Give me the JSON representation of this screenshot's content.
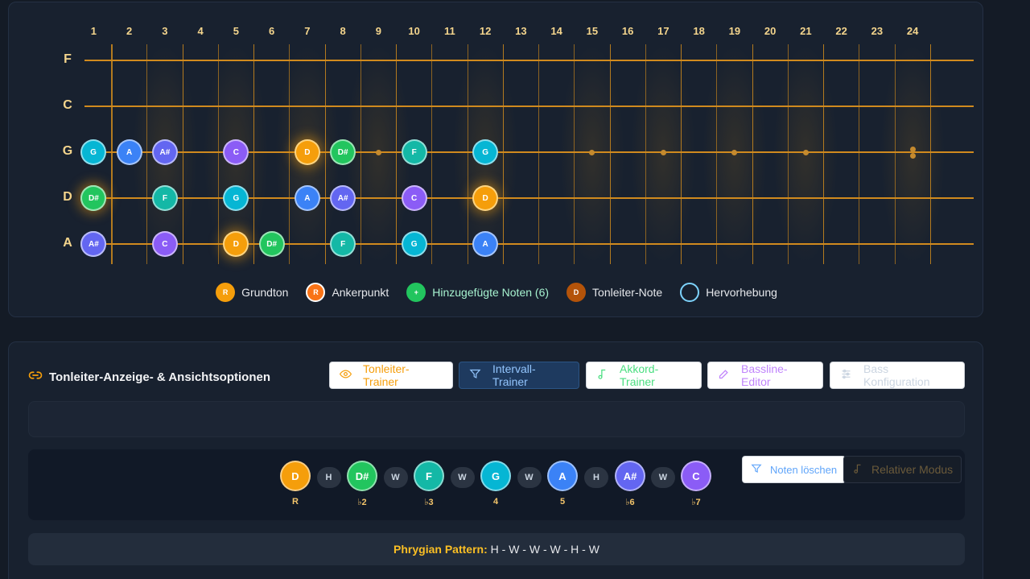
{
  "fretboard": {
    "fret_numbers": [
      "1",
      "2",
      "3",
      "4",
      "5",
      "6",
      "7",
      "8",
      "9",
      "10",
      "11",
      "12",
      "13",
      "14",
      "15",
      "16",
      "17",
      "18",
      "19",
      "20",
      "21",
      "22",
      "23",
      "24"
    ],
    "strings": [
      {
        "label": "F",
        "notes": []
      },
      {
        "label": "C",
        "notes": []
      },
      {
        "label": "G",
        "notes": [
          {
            "fret": 0,
            "name": "G",
            "color": "#06b6d4"
          },
          {
            "fret": 2,
            "name": "A",
            "color": "#3b82f6"
          },
          {
            "fret": 3,
            "name": "A#",
            "color": "#6366f1"
          },
          {
            "fret": 5,
            "name": "C",
            "color": "#8b5cf6"
          },
          {
            "fret": 7,
            "name": "D",
            "color": "#f59e0b",
            "root": true
          },
          {
            "fret": 8,
            "name": "D#",
            "color": "#22c55e"
          },
          {
            "fret": 10,
            "name": "F",
            "color": "#14b8a6"
          },
          {
            "fret": 12,
            "name": "G",
            "color": "#06b6d4"
          }
        ]
      },
      {
        "label": "D",
        "notes": [
          {
            "fret": 0,
            "name": "D",
            "color": "#f59e0b",
            "root": true
          },
          {
            "fret": 1,
            "name": "D#",
            "color": "#22c55e"
          },
          {
            "fret": 3,
            "name": "F",
            "color": "#14b8a6"
          },
          {
            "fret": 5,
            "name": "G",
            "color": "#06b6d4"
          },
          {
            "fret": 7,
            "name": "A",
            "color": "#3b82f6"
          },
          {
            "fret": 8,
            "name": "A#",
            "color": "#6366f1"
          },
          {
            "fret": 10,
            "name": "C",
            "color": "#8b5cf6"
          },
          {
            "fret": 12,
            "name": "D",
            "color": "#f59e0b",
            "root": true
          }
        ]
      },
      {
        "label": "A",
        "notes": [
          {
            "fret": 0,
            "name": "A",
            "color": "#3b82f6"
          },
          {
            "fret": 1,
            "name": "A#",
            "color": "#6366f1"
          },
          {
            "fret": 3,
            "name": "C",
            "color": "#8b5cf6"
          },
          {
            "fret": 5,
            "name": "D",
            "color": "#f59e0b",
            "root": true
          },
          {
            "fret": 6,
            "name": "D#",
            "color": "#22c55e"
          },
          {
            "fret": 8,
            "name": "F",
            "color": "#14b8a6"
          },
          {
            "fret": 10,
            "name": "G",
            "color": "#06b6d4"
          },
          {
            "fret": 12,
            "name": "A",
            "color": "#3b82f6"
          }
        ]
      }
    ],
    "inlay_frets": [
      9,
      15,
      17,
      19,
      21
    ],
    "double_inlay_fret": 24
  },
  "legend": [
    {
      "symbol": "R",
      "label": "Grundton",
      "color": "#f59e0b",
      "text_color": "#e5e7eb"
    },
    {
      "symbol": "R",
      "label": "Ankerpunkt",
      "color": "#f97316",
      "ring": "#ffffff",
      "text_color": "#e5e7eb"
    },
    {
      "symbol": "+",
      "label": "Hinzugefügte Noten (6)",
      "color": "#22c55e",
      "text_color": "#a7f3d0"
    },
    {
      "symbol": "D",
      "label": "Tonleiter-Note",
      "color": "#b45309",
      "text_color": "#e5e7eb"
    },
    {
      "symbol": "",
      "label": "Hervorhebung",
      "color": "transparent",
      "ring": "#7dd3fc",
      "text_color": "#e5e7eb"
    }
  ],
  "options": {
    "title": "Tonleiter-Anzeige- & Ansichtsoptionen",
    "tabs": [
      {
        "label": "Tonleiter-Trainer",
        "icon": "eye-icon",
        "color": "#f59e0b"
      },
      {
        "label": "Intervall-Trainer",
        "icon": "filter-icon",
        "color": "#93c5fd",
        "active": true
      },
      {
        "label": "Akkord-Trainer",
        "icon": "music-note-icon",
        "color": "#4ade80"
      },
      {
        "label": "Bassline-Editor",
        "icon": "pencil-icon",
        "color": "#c084fc"
      },
      {
        "label": "Bass Konfiguration",
        "icon": "sliders-icon",
        "color": "#cbd5e1"
      }
    ],
    "scale_notes": [
      {
        "name": "D",
        "degree": "R",
        "color": "#f59e0b"
      },
      {
        "name": "D#",
        "degree": "♭2",
        "color": "#22c55e"
      },
      {
        "name": "F",
        "degree": "♭3",
        "color": "#14b8a6"
      },
      {
        "name": "G",
        "degree": "4",
        "color": "#06b6d4"
      },
      {
        "name": "A",
        "degree": "5",
        "color": "#3b82f6"
      },
      {
        "name": "A#",
        "degree": "♭6",
        "color": "#6366f1"
      },
      {
        "name": "C",
        "degree": "♭7",
        "color": "#8b5cf6"
      }
    ],
    "steps": [
      "H",
      "W",
      "W",
      "W",
      "H",
      "W"
    ],
    "clear_notes_label": "Noten löschen",
    "relative_mode_label": "Relativer Modus",
    "pattern_label": "Phrygian Pattern:",
    "pattern_value": "H - W - W - W - H - W"
  }
}
